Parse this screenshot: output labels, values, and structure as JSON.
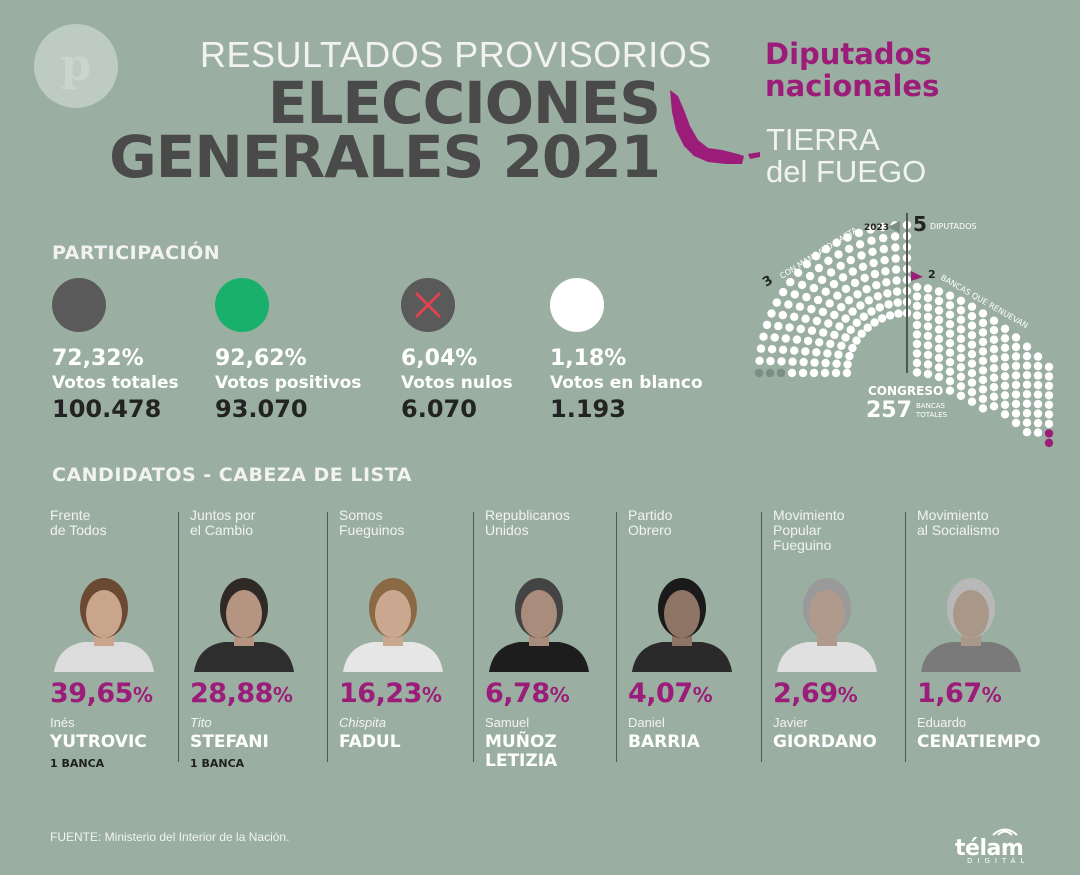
{
  "header": {
    "supertitle": "RESULTADOS PROVISORIOS",
    "title_line1": "ELECCIONES",
    "title_line2": "GENERALES 2021",
    "category_line1": "Diputados",
    "category_line2": "nacionales",
    "province_line1": "TIERRA",
    "province_line2": "del FUEGO"
  },
  "congress": {
    "mandato_count": "3",
    "mandato_text": "CON MANDATO HASTA",
    "mandato_year": "2023",
    "diputados_count": "5",
    "diputados_text": "DIPUTADOS",
    "renuevan_count": "2",
    "renuevan_text": "BANCAS QUE RENUEVAN",
    "label": "CONGRESO",
    "total": "257",
    "total_text1": "BANCAS",
    "total_text2": "TOTALES",
    "colors": {
      "seat": "#ffffff",
      "mandato": "#7d8f85",
      "renuevan": "#9c1d79"
    }
  },
  "participation": {
    "heading": "PARTICIPACIÓN",
    "items": [
      {
        "pct": "72,32%",
        "label": "Votos totales",
        "value": "100.478",
        "color": "#5a5a5a",
        "icon": "circle-dark"
      },
      {
        "pct": "92,62%",
        "label": "Votos positivos",
        "value": "93.070",
        "color": "#19b06b",
        "icon": "circle-green"
      },
      {
        "pct": "6,04%",
        "label": "Votos nulos",
        "value": "6.070",
        "color": "#5a5a5a",
        "icon": "x-icon"
      },
      {
        "pct": "1,18%",
        "label": "Votos en blanco",
        "value": "1.193",
        "color": "#ffffff",
        "icon": "circle-white"
      }
    ]
  },
  "candidates": {
    "heading": "CANDIDATOS - CABEZA DE LISTA",
    "items": [
      {
        "party": "Frente\nde Todos",
        "pct": "39,65",
        "pct_sign": "%",
        "first": "Inés",
        "last": "YUTROVIC",
        "seats": "1 BANCA",
        "italic_first": false
      },
      {
        "party": "Juntos por\nel Cambio",
        "pct": "28,88",
        "pct_sign": "%",
        "first": "Tito",
        "last": "STEFANI",
        "seats": "1 BANCA",
        "italic_first": true
      },
      {
        "party": "Somos\nFueguinos",
        "pct": "16,23",
        "pct_sign": "%",
        "first": "Chispita",
        "last": "FADUL",
        "seats": "",
        "italic_first": true
      },
      {
        "party": "Republicanos\nUnidos",
        "pct": "6,78",
        "pct_sign": "%",
        "first": "Samuel",
        "last": "MUÑOZ\nLETIZIA",
        "seats": "",
        "italic_first": false
      },
      {
        "party": "Partido\nObrero",
        "pct": "4,07",
        "pct_sign": "%",
        "first": "Daniel",
        "last": "BARRIA",
        "seats": "",
        "italic_first": false
      },
      {
        "party": "Movimiento\nPopular\nFueguino",
        "pct": "2,69",
        "pct_sign": "%",
        "first": "Javier",
        "last": "GIORDANO",
        "seats": "",
        "italic_first": false
      },
      {
        "party": "Movimiento\nal Socialismo",
        "pct": "1,67",
        "pct_sign": "%",
        "first": "Eduardo",
        "last": "CENATIEMPO",
        "seats": "",
        "italic_first": false
      }
    ]
  },
  "footer": {
    "source": "FUENTE: Ministerio del Interior de la Nación.",
    "brand": "télam",
    "brand_sub": "DIGITAL"
  },
  "colors": {
    "background": "#9aafa2",
    "accent": "#9c1d79",
    "title": "#4a4a4a"
  }
}
